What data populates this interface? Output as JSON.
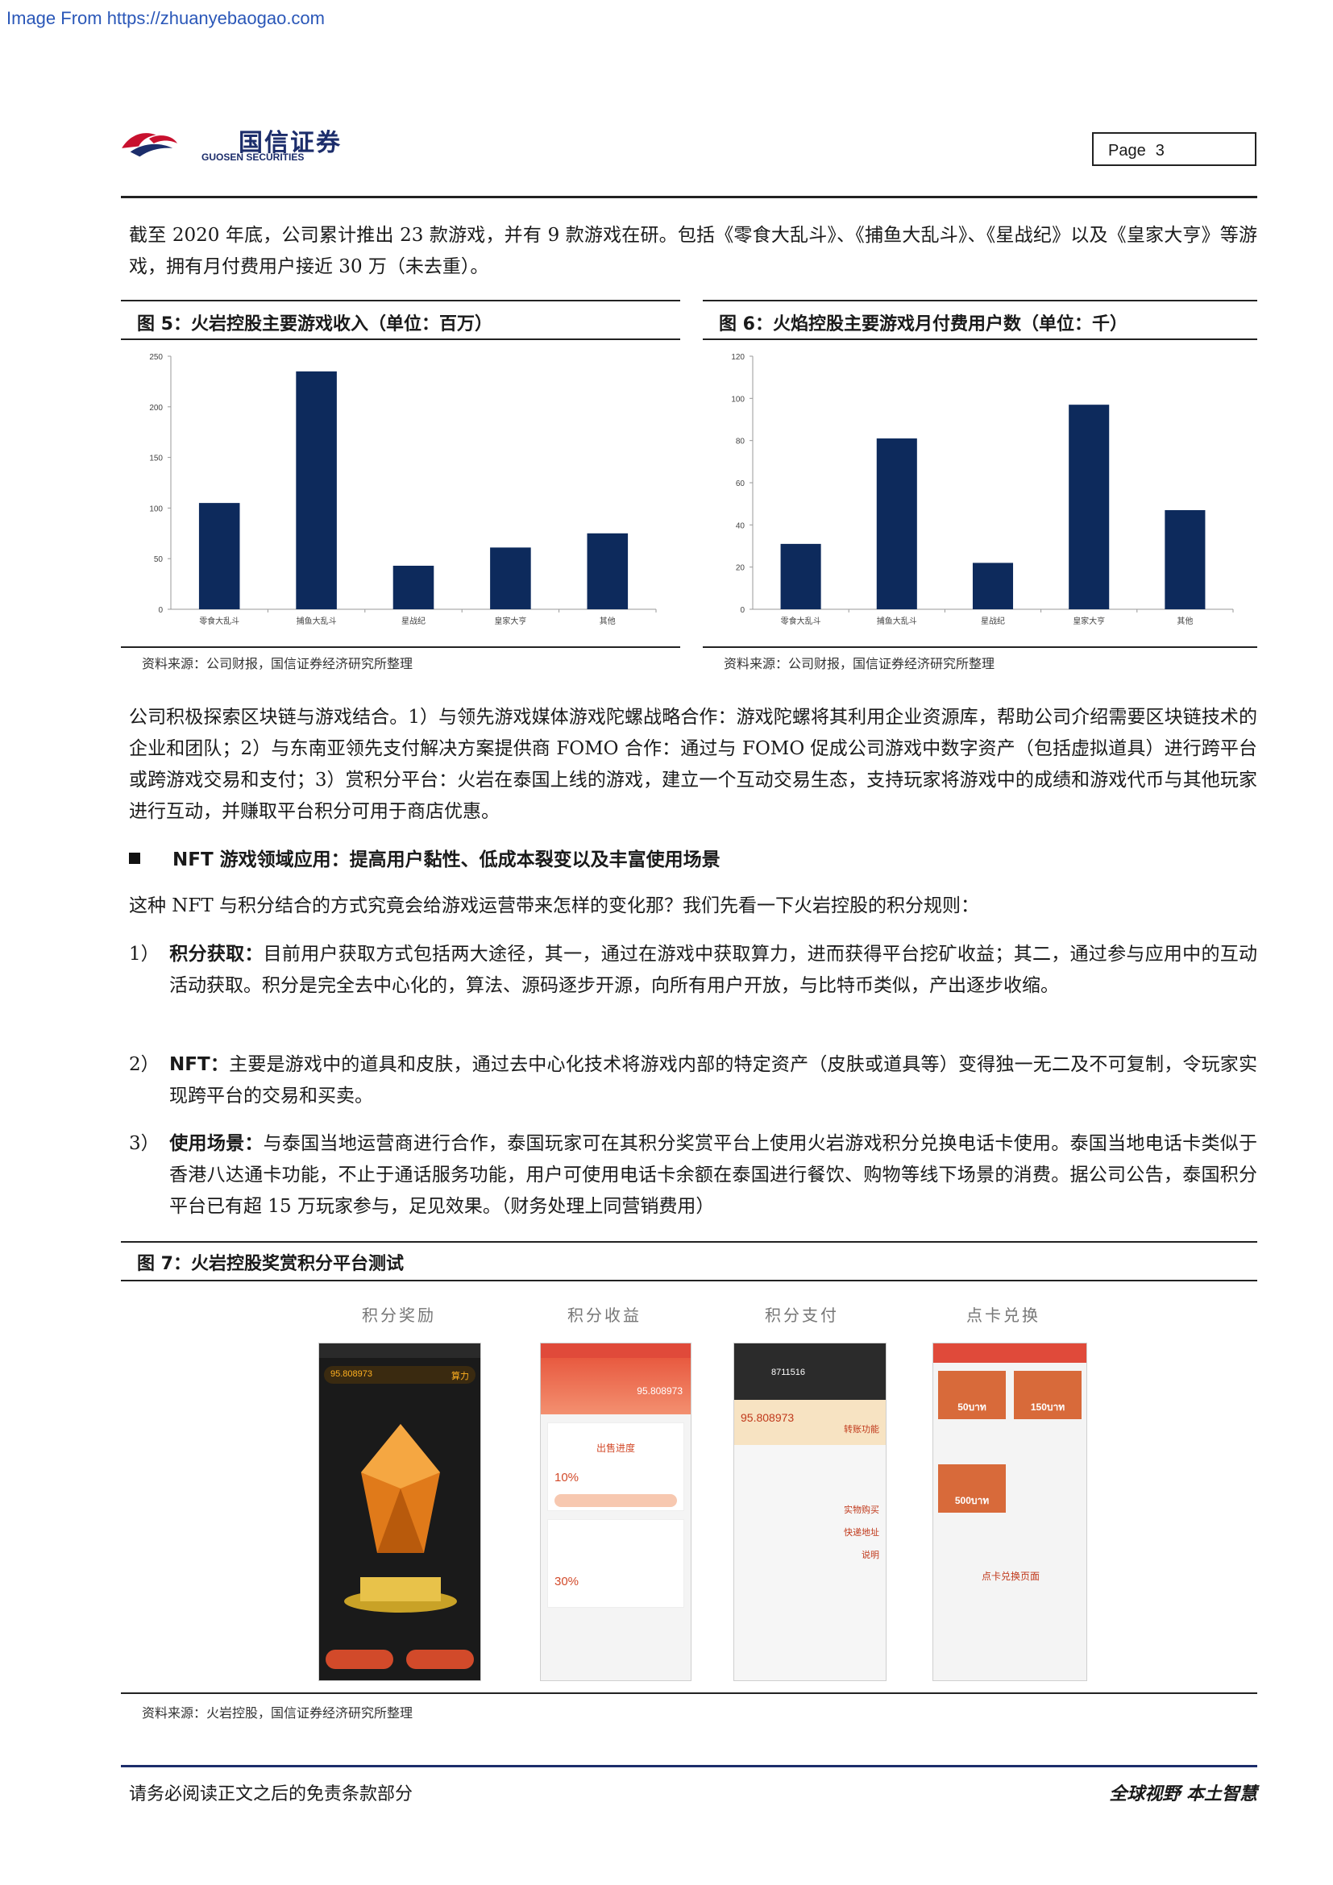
{
  "watermark": "Image From https://zhuanyebaogao.com",
  "header": {
    "logo_cn": "国信证券",
    "logo_en": "GUOSEN SECURITIES",
    "page_label": "Page",
    "page_number": "3"
  },
  "intro_paragraph": "截至 2020 年底，公司累计推出 23 款游戏，并有 9 款游戏在研。包括《零食大乱斗》、《捕鱼大乱斗》、《星战纪》以及《皇家大亨》等游戏，拥有月付费用户接近 30 万（未去重）。",
  "figure5": {
    "title": "图 5：火岩控股主要游戏收入（单位：百万）",
    "source": "资料来源：公司财报，国信证券经济研究所整理"
  },
  "figure6": {
    "title": "图 6：火焰控股主要游戏月付费用户数（单位：千）",
    "source": "资料来源：公司财报，国信证券经济研究所整理"
  },
  "chart_data": [
    {
      "type": "bar",
      "categories": [
        "零食大乱斗",
        "捕鱼大乱斗",
        "星战纪",
        "皇家大亨",
        "其他"
      ],
      "values": [
        105,
        235,
        43,
        61,
        75
      ],
      "ylim": [
        0,
        250
      ],
      "yticks": [
        0,
        50,
        100,
        150,
        200,
        250
      ],
      "color": "#0d2a5c",
      "grid": false
    },
    {
      "type": "bar",
      "categories": [
        "零食大乱斗",
        "捕鱼大乱斗",
        "星战纪",
        "皇家大亨",
        "其他"
      ],
      "values": [
        31,
        81,
        22,
        97,
        47
      ],
      "ylim": [
        0,
        120
      ],
      "yticks": [
        0,
        20,
        40,
        60,
        80,
        100,
        120
      ],
      "color": "#0d2a5c",
      "grid": false
    }
  ],
  "blockchain_paragraph": "公司积极探索区块链与游戏结合。1）与领先游戏媒体游戏陀螺战略合作：游戏陀螺将其利用企业资源库，帮助公司介绍需要区块链技术的企业和团队；2）与东南亚领先支付解决方案提供商 FOMO 合作：通过与 FOMO 促成公司游戏中数字资产（包括虚拟道具）进行跨平台或跨游戏交易和支付；3）赏积分平台：火岩在泰国上线的游戏，建立一个互动交易生态，支持玩家将游戏中的成绩和游戏代币与其他玩家进行互动，并赚取平台积分可用于商店优惠。",
  "section_heading": "NFT 游戏领域应用：提高用户黏性、低成本裂变以及丰富使用场景",
  "section_intro": "这种 NFT 与积分结合的方式究竟会给游戏运营带来怎样的变化那？我们先看一下火岩控股的积分规则：",
  "items": [
    {
      "num": "1）",
      "term": "积分获取：",
      "text": "目前用户获取方式包括两大途径，其一，通过在游戏中获取算力，进而获得平台挖矿收益；其二，通过参与应用中的互动活动获取。积分是完全去中心化的，算法、源码逐步开源，向所有用户开放，与比特币类似，产出逐步收缩。"
    },
    {
      "num": "2）",
      "term": "NFT：",
      "text": "主要是游戏中的道具和皮肤，通过去中心化技术将游戏内部的特定资产（皮肤或道具等）变得独一无二及不可复制，令玩家实现跨平台的交易和买卖。"
    },
    {
      "num": "3）",
      "term": "使用场景：",
      "text": "与泰国当地运营商进行合作，泰国玩家可在其积分奖赏平台上使用火岩游戏积分兑换电话卡使用。泰国当地电话卡类似于香港八达通卡功能，不止于通话服务功能，用户可使用电话卡余额在泰国进行餐饮、购物等线下场景的消费。据公司公告，泰国积分平台已有超 15 万玩家参与，足见效果。（财务处理上同营销费用）"
    }
  ],
  "figure7": {
    "title": "图 7：火岩控股奖赏积分平台测试",
    "source": "资料来源：火岩控股，国信证券经济研究所整理",
    "screens": [
      {
        "label": "积分奖励",
        "values": [
          "95.808973",
          "算力"
        ]
      },
      {
        "label": "积分收益",
        "values": [
          "95.808973",
          "10%",
          "30%",
          "出售进度"
        ]
      },
      {
        "label": "积分支付",
        "values": [
          "8711516",
          "95.808973",
          "转账功能",
          "实物购买",
          "快递地址",
          "说明"
        ]
      },
      {
        "label": "点卡兑换",
        "values": [
          "50บาท",
          "150บาท",
          "500บาท",
          "点卡兑换页面"
        ]
      }
    ]
  },
  "footer": {
    "disclaimer": "请务必阅读正文之后的免责条款部分",
    "slogan": "全球视野  本土智慧"
  }
}
